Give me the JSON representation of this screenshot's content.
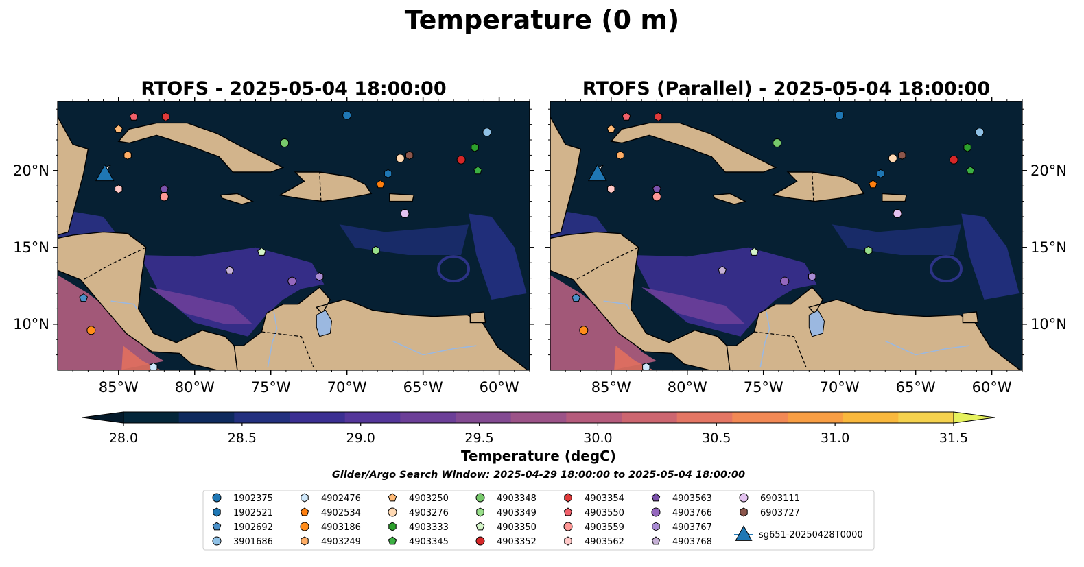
{
  "title": "Temperature (0 m)",
  "panels": [
    {
      "title": "RTOFS - 2025-05-04 18:00:00"
    },
    {
      "title": "RTOFS (Parallel) - 2025-05-04 18:00:00"
    }
  ],
  "map": {
    "lon_range": [
      -89,
      -58
    ],
    "lat_range": [
      7,
      24.5
    ],
    "lon_ticks": [
      "85°W",
      "80°W",
      "75°W",
      "70°W",
      "65°W",
      "60°W"
    ],
    "lat_ticks": [
      "20°N",
      "15°N",
      "10°N"
    ],
    "land_color": "#d2b48c",
    "water_dark": "#062033",
    "lake_color": "#9bb8e0"
  },
  "colorbar": {
    "label": "Temperature (degC)",
    "ticks": [
      "28.0",
      "28.5",
      "29.0",
      "29.5",
      "30.0",
      "30.5",
      "31.0",
      "31.5"
    ],
    "colors": [
      "#04263a",
      "#0e2a5e",
      "#23307f",
      "#3b2f92",
      "#54369a",
      "#6c3f98",
      "#834a92",
      "#9c5388",
      "#b55b7c",
      "#cd6670",
      "#e47664",
      "#f28955",
      "#f89e44",
      "#f9b83d",
      "#f5d24e"
    ],
    "extend_low": "#041a2b",
    "extend_high": "#e6f25e"
  },
  "search_window": "Glider/Argo Search Window: 2025-04-29 18:00:00 to 2025-05-04 18:00:00",
  "legend": [
    {
      "label": "1902375",
      "marker": "circle",
      "color": "#1f77b4"
    },
    {
      "label": "1902521",
      "marker": "hexagon",
      "color": "#1f77b4"
    },
    {
      "label": "1902692",
      "marker": "pentagon",
      "color": "#4a90c8"
    },
    {
      "label": "3901686",
      "marker": "circle",
      "color": "#8fc1e6"
    },
    {
      "label": "4902476",
      "marker": "hexagon",
      "color": "#cfe8fb"
    },
    {
      "label": "4902534",
      "marker": "pentagon",
      "color": "#ff7f0e"
    },
    {
      "label": "4903186",
      "marker": "circle",
      "color": "#ff8c1a"
    },
    {
      "label": "4903249",
      "marker": "hexagon",
      "color": "#ffae66"
    },
    {
      "label": "4903250",
      "marker": "pentagon",
      "color": "#ffbb78"
    },
    {
      "label": "4903276",
      "marker": "circle",
      "color": "#ffd9b3"
    },
    {
      "label": "4903333",
      "marker": "hexagon",
      "color": "#2ca02c"
    },
    {
      "label": "4903345",
      "marker": "pentagon",
      "color": "#3cb043"
    },
    {
      "label": "4903348",
      "marker": "circle",
      "color": "#77c96b"
    },
    {
      "label": "4903349",
      "marker": "hexagon",
      "color": "#98df8a"
    },
    {
      "label": "4903350",
      "marker": "pentagon",
      "color": "#d4f5c8"
    },
    {
      "label": "4903352",
      "marker": "circle",
      "color": "#d62728"
    },
    {
      "label": "4903354",
      "marker": "hexagon",
      "color": "#e03a3a"
    },
    {
      "label": "4903550",
      "marker": "pentagon",
      "color": "#f0606a"
    },
    {
      "label": "4903559",
      "marker": "circle",
      "color": "#ff9896"
    },
    {
      "label": "4903562",
      "marker": "hexagon",
      "color": "#ffc9c8"
    },
    {
      "label": "4903563",
      "marker": "pentagon",
      "color": "#7b52ab"
    },
    {
      "label": "4903766",
      "marker": "circle",
      "color": "#9467bd"
    },
    {
      "label": "4903767",
      "marker": "hexagon",
      "color": "#a98bd4"
    },
    {
      "label": "4903768",
      "marker": "pentagon",
      "color": "#c5b0d5"
    },
    {
      "label": "6903111",
      "marker": "circle",
      "color": "#e3c2f0"
    },
    {
      "label": "6903727",
      "marker": "hexagon",
      "color": "#8c564b"
    },
    {
      "label": "sg651-20250428T0000",
      "marker": "triangle",
      "color": "#1f77b4"
    }
  ],
  "floats": [
    {
      "id": "1902375",
      "lon": -70.0,
      "lat": 23.6
    },
    {
      "id": "1902521",
      "lon": -67.3,
      "lat": 19.8
    },
    {
      "id": "1902692",
      "lon": -87.3,
      "lat": 11.7
    },
    {
      "id": "3901686",
      "lon": -60.8,
      "lat": 22.5
    },
    {
      "id": "4902476",
      "lon": -82.7,
      "lat": 7.2
    },
    {
      "id": "4902534",
      "lon": -67.8,
      "lat": 19.1
    },
    {
      "id": "4903186",
      "lon": -86.8,
      "lat": 9.6
    },
    {
      "id": "4903249",
      "lon": -84.4,
      "lat": 21.0
    },
    {
      "id": "4903250",
      "lon": -85.0,
      "lat": 22.7
    },
    {
      "id": "4903276",
      "lon": -66.5,
      "lat": 20.8
    },
    {
      "id": "4903333",
      "lon": -61.6,
      "lat": 21.5
    },
    {
      "id": "4903345",
      "lon": -61.4,
      "lat": 20.0
    },
    {
      "id": "4903348",
      "lon": -74.1,
      "lat": 21.8
    },
    {
      "id": "4903349",
      "lon": -68.1,
      "lat": 14.8
    },
    {
      "id": "4903350",
      "lon": -75.6,
      "lat": 14.7
    },
    {
      "id": "4903352",
      "lon": -62.5,
      "lat": 20.7
    },
    {
      "id": "4903354",
      "lon": -81.9,
      "lat": 23.5
    },
    {
      "id": "4903550",
      "lon": -84.0,
      "lat": 23.5
    },
    {
      "id": "4903559",
      "lon": -82.0,
      "lat": 18.3
    },
    {
      "id": "4903562",
      "lon": -85.0,
      "lat": 18.8
    },
    {
      "id": "4903563",
      "lon": -82.0,
      "lat": 18.8
    },
    {
      "id": "4903766",
      "lon": -73.6,
      "lat": 12.8
    },
    {
      "id": "4903767",
      "lon": -71.8,
      "lat": 13.1
    },
    {
      "id": "4903768",
      "lon": -77.7,
      "lat": 13.5
    },
    {
      "id": "6903111",
      "lon": -66.2,
      "lat": 17.2
    },
    {
      "id": "6903727",
      "lon": -65.9,
      "lat": 21.0
    }
  ],
  "glider": {
    "id": "sg651-20250428T0000",
    "lon": -85.9,
    "lat": 19.8
  }
}
